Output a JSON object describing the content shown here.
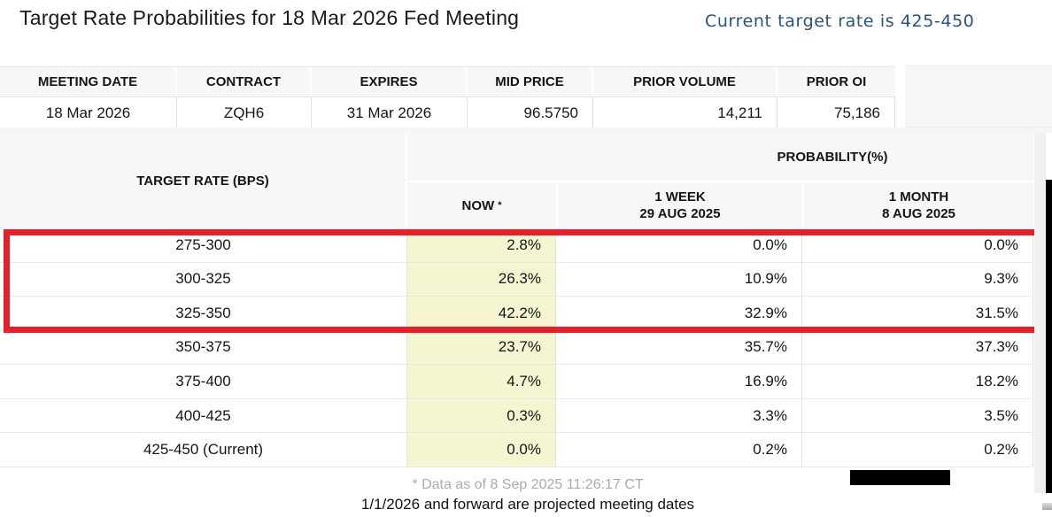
{
  "page": {
    "title": "Target Rate Probabilities for 18 Mar 2026 Fed Meeting",
    "current_rate_note": "Current target rate is 425-450"
  },
  "contract_table": {
    "headers": [
      "MEETING DATE",
      "CONTRACT",
      "EXPIRES",
      "MID PRICE",
      "PRIOR VOLUME",
      "PRIOR OI"
    ],
    "row": {
      "meeting_date": "18 Mar 2026",
      "contract": "ZQH6",
      "expires": "31 Mar 2026",
      "mid_price": "96.5750",
      "prior_volume": "14,211",
      "prior_oi": "75,186"
    }
  },
  "probability_table": {
    "corner_header": "TARGET RATE (BPS)",
    "group_header": "PROBABILITY(%)",
    "columns": {
      "now_label": "NOW",
      "now_footnote_marker": "*",
      "week_label": "1 WEEK",
      "week_date": "29 AUG 2025",
      "month_label": "1 MONTH",
      "month_date": "8 AUG 2025"
    },
    "rows": [
      {
        "range": "275-300",
        "now": "2.8%",
        "week": "0.0%",
        "month": "0.0%"
      },
      {
        "range": "300-325",
        "now": "26.3%",
        "week": "10.9%",
        "month": "9.3%"
      },
      {
        "range": "325-350",
        "now": "42.2%",
        "week": "32.9%",
        "month": "31.5%"
      },
      {
        "range": "350-375",
        "now": "23.7%",
        "week": "35.7%",
        "month": "37.3%"
      },
      {
        "range": "375-400",
        "now": "4.7%",
        "week": "16.9%",
        "month": "18.2%"
      },
      {
        "range": "400-425",
        "now": "0.3%",
        "week": "3.3%",
        "month": "3.5%"
      },
      {
        "range": "425-450 (Current)",
        "now": "0.0%",
        "week": "0.2%",
        "month": "0.2%"
      }
    ],
    "highlighted_row_ranges": [
      "275-300",
      "300-325",
      "325-350"
    ]
  },
  "footer": {
    "data_as_of": "* Data as of 8 Sep 2025 11:26:17 CT",
    "projection_note": "1/1/2026 and forward are projected meeting dates"
  },
  "colors": {
    "accent_red": "#e81e2b",
    "now_column_yellow": "#f5f5d2",
    "note_blue": "#2a547c",
    "header_gray": "#f7f7f7",
    "muted_text_gray": "#ababab"
  }
}
